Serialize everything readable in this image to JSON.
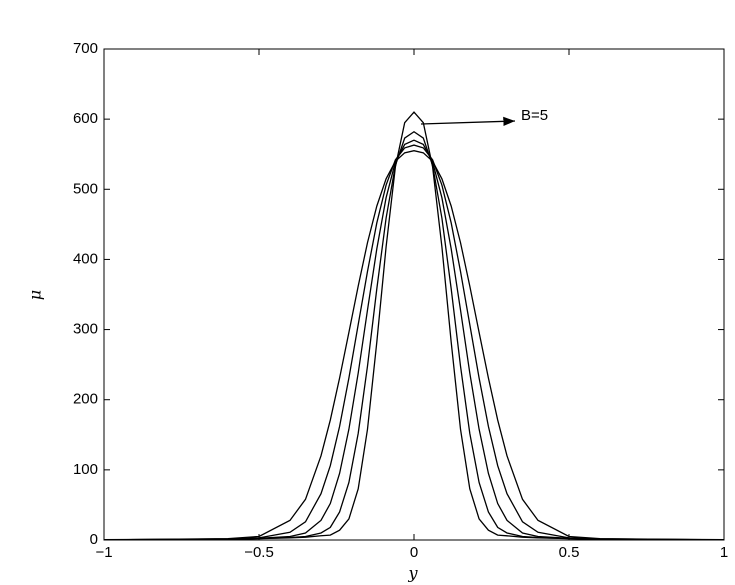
{
  "chart_data": {
    "type": "line",
    "xlabel": "y",
    "ylabel": "μ",
    "annotation": "B=5",
    "x": [
      -1,
      -0.8,
      -0.6,
      -0.5,
      -0.4,
      -0.35,
      -0.3,
      -0.27,
      -0.24,
      -0.21,
      -0.18,
      -0.15,
      -0.12,
      -0.09,
      -0.06,
      -0.03,
      0,
      0.03,
      0.06,
      0.09,
      0.12,
      0.15,
      0.18,
      0.21,
      0.24,
      0.27,
      0.3,
      0.35,
      0.4,
      0.5,
      0.6,
      0.8,
      1
    ],
    "series": [
      {
        "color": "#000000",
        "values": [
          0.3,
          0.5,
          1,
          2,
          3,
          4,
          6,
          7,
          14,
          30,
          73,
          158,
          282,
          418,
          532,
          595,
          610,
          595,
          532,
          418,
          282,
          158,
          73,
          30,
          14,
          7,
          6,
          4,
          3,
          2,
          1,
          0.5,
          0.3
        ]
      },
      {
        "color": "#000000",
        "values": [
          0.3,
          0.6,
          1.2,
          2.2,
          3.5,
          5,
          10,
          18,
          40,
          82,
          152,
          248,
          358,
          459,
          534,
          573,
          582,
          573,
          534,
          459,
          358,
          248,
          152,
          82,
          40,
          18,
          10,
          5,
          3.5,
          2.2,
          1.2,
          0.6,
          0.3
        ]
      },
      {
        "color": "#000000",
        "values": [
          0.4,
          0.7,
          1.4,
          2.5,
          5,
          10,
          28,
          52,
          95,
          158,
          238,
          328,
          415,
          488,
          539,
          564,
          570,
          564,
          539,
          488,
          415,
          328,
          238,
          158,
          95,
          52,
          28,
          10,
          5,
          2.5,
          1.4,
          0.7,
          0.4
        ]
      },
      {
        "color": "#000000",
        "values": [
          0.4,
          0.8,
          1.6,
          3,
          11,
          26,
          66,
          106,
          162,
          231,
          307,
          383,
          452,
          506,
          542,
          559,
          563,
          559,
          542,
          506,
          452,
          383,
          307,
          231,
          162,
          106,
          66,
          26,
          11,
          3,
          1.6,
          0.8,
          0.4
        ]
      },
      {
        "color": "#000000",
        "values": [
          0.5,
          1,
          2,
          5,
          28,
          58,
          120,
          171,
          231,
          296,
          362,
          424,
          476,
          515,
          540,
          552,
          555,
          552,
          540,
          515,
          476,
          424,
          362,
          296,
          231,
          171,
          120,
          58,
          28,
          5,
          2,
          1,
          0.5
        ]
      }
    ],
    "xlim": [
      -1,
      1
    ],
    "xticks": [
      {
        "value": -1,
        "label": "−1"
      },
      {
        "value": -0.5,
        "label": "−0.5"
      },
      0,
      0.5,
      1
    ],
    "ylim": [
      0,
      700
    ],
    "yticks": [
      0,
      100,
      200,
      300,
      400,
      500,
      600,
      700
    ],
    "grid": false
  }
}
